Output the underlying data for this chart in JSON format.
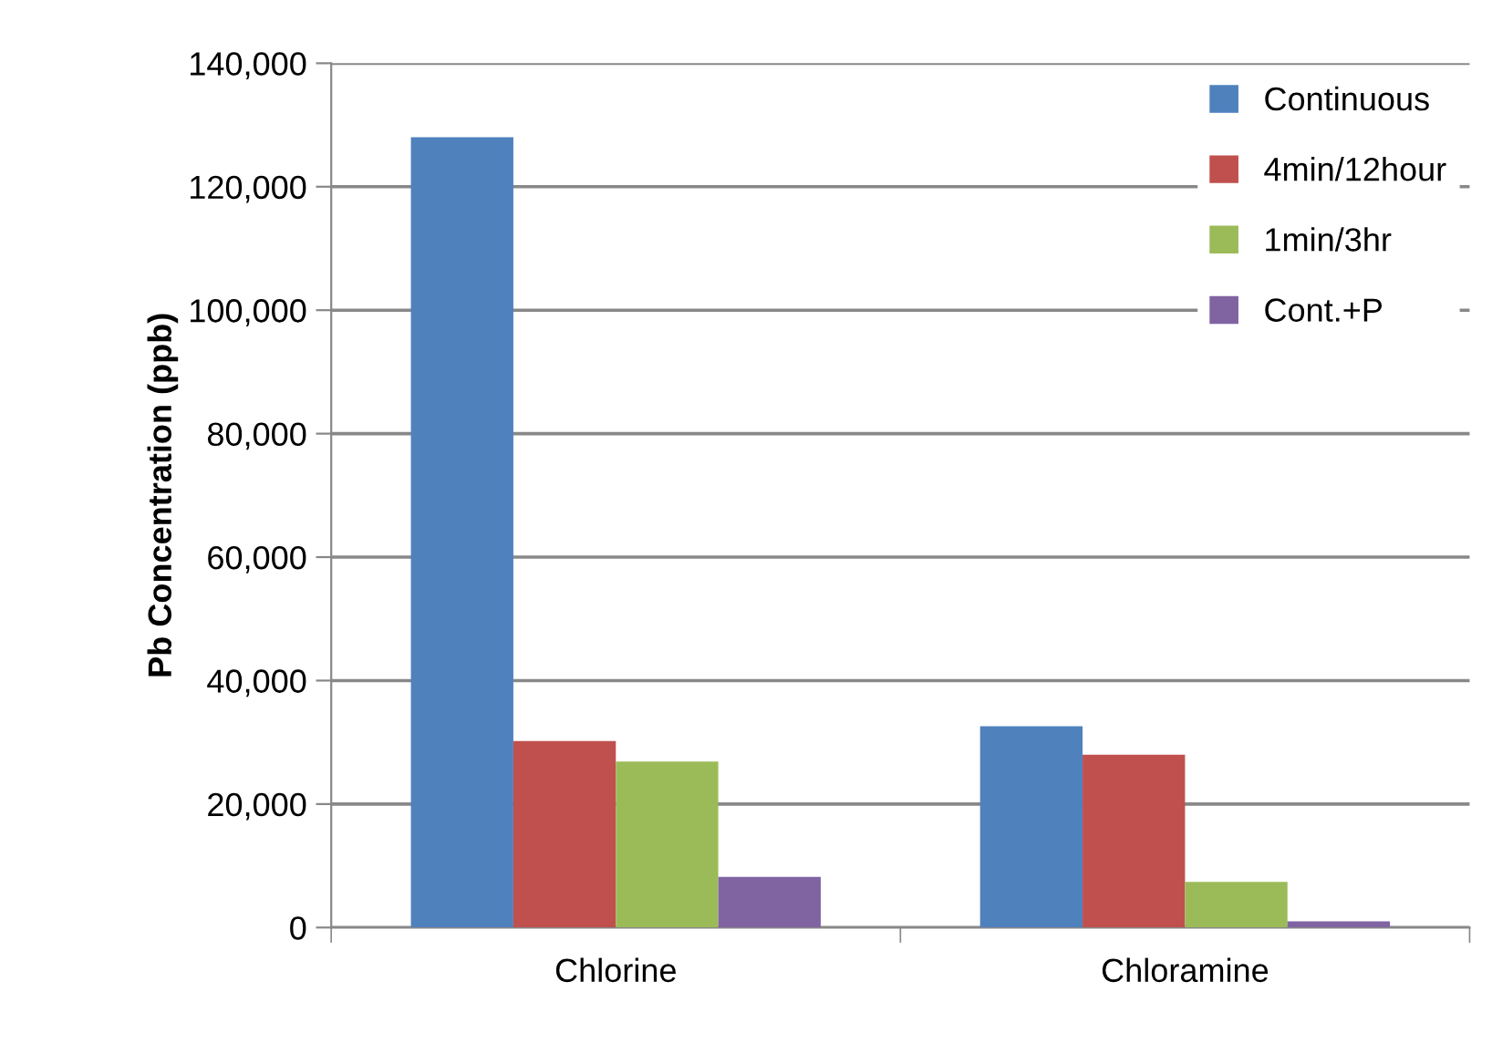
{
  "chart_data": {
    "type": "bar",
    "ylabel": "Pb Concentration (ppb)",
    "categories": [
      "Chlorine",
      "Chloramine"
    ],
    "series": [
      {
        "name": "Continuous",
        "color": "#4f81bd",
        "values": [
          128000,
          32600
        ]
      },
      {
        "name": "4min/12hour",
        "color": "#c0504d",
        "values": [
          30200,
          28000
        ]
      },
      {
        "name": "1min/3hr",
        "color": "#9bbb59",
        "values": [
          26900,
          7400
        ]
      },
      {
        "name": "Cont.+P",
        "color": "#8064a2",
        "values": [
          8200,
          1000
        ]
      }
    ],
    "ylim": [
      0,
      140000
    ],
    "yticks": [
      {
        "value": 0,
        "label": "0"
      },
      {
        "value": 20000,
        "label": "20,000"
      },
      {
        "value": 40000,
        "label": "40,000"
      },
      {
        "value": 60000,
        "label": "60,000"
      },
      {
        "value": 80000,
        "label": "80,000"
      },
      {
        "value": 100000,
        "label": "100,000"
      },
      {
        "value": 120000,
        "label": "120,000"
      },
      {
        "value": 140000,
        "label": "140,000"
      }
    ],
    "grid": "y",
    "legend": "top right"
  }
}
